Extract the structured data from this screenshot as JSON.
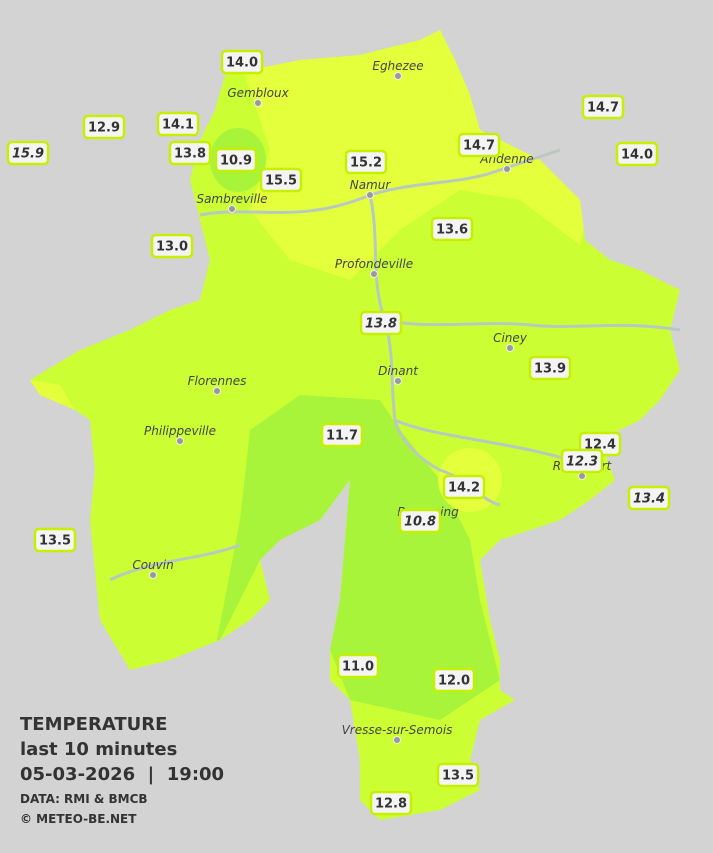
{
  "towns": [
    "Eghezee",
    "Gembloux",
    "Andenne",
    "Namur",
    "Sambreville",
    "Profondeville",
    "Ciney",
    "Dinant",
    "Florennes",
    "Philippeville",
    "Beauraing",
    "Rochefort",
    "Couvin",
    "Vresse-sur-Semois"
  ],
  "stations": [
    "14.0",
    "12.9",
    "14.1",
    "15.9",
    "13.8",
    "10.9",
    "15.5",
    "15.2",
    "14.7",
    "14.7",
    "14.0",
    "13.0",
    "13.6",
    "13.8",
    "13.9",
    "11.7",
    "12.4",
    "12.3",
    "14.2",
    "13.4",
    "10.8",
    "13.5",
    "11.0",
    "12.0",
    "13.5",
    "12.8"
  ],
  "caption": {
    "title": "TEMPERATURE",
    "period": "last 10 minutes",
    "datetime": "05-03-2026  |  19:00",
    "source": "DATA: RMI & BMCB",
    "copyright": "© METEO-BE.NET"
  }
}
